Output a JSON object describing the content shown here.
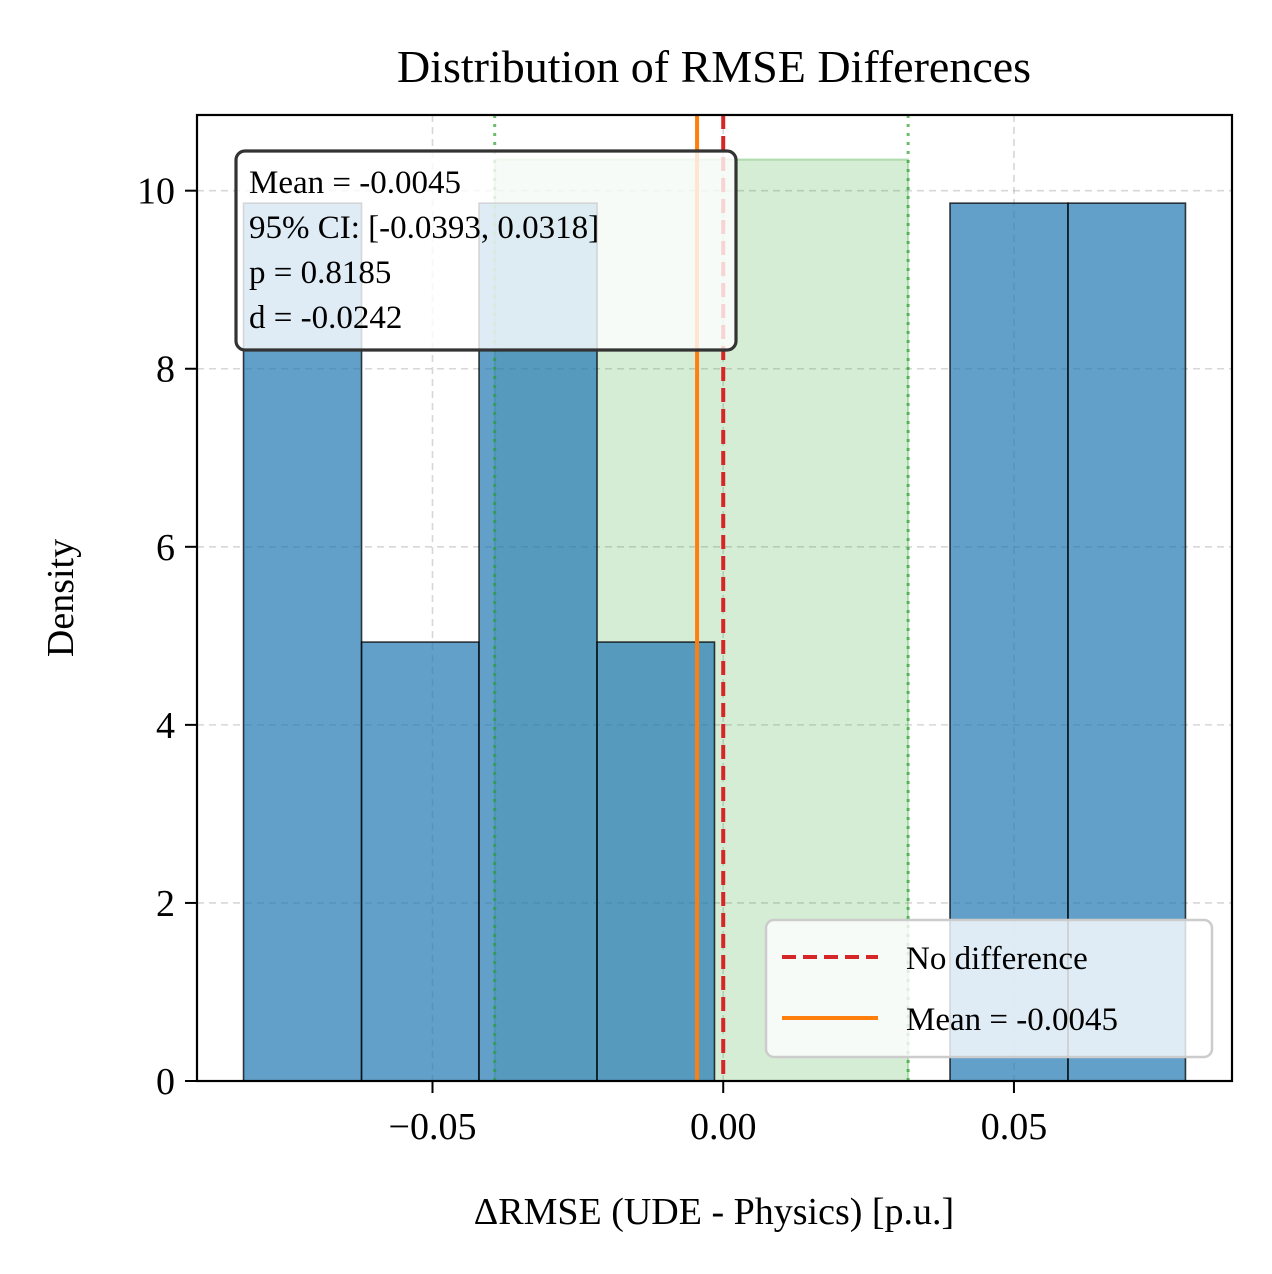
{
  "chart_data": {
    "type": "bar",
    "title": "Distribution of RMSE Differences",
    "xlabel": "ΔRMSE (UDE - Physics) [p.u.]",
    "ylabel": "Density",
    "xlim": [
      -0.0905,
      0.0875
    ],
    "ylim": [
      0,
      10.85
    ],
    "x_ticks": [
      -0.05,
      0.0,
      0.05
    ],
    "x_tick_labels": [
      "−0.05",
      "0.00",
      "0.05"
    ],
    "y_ticks": [
      0,
      2,
      4,
      6,
      8,
      10
    ],
    "y_tick_labels": [
      "0",
      "2",
      "4",
      "6",
      "8",
      "10"
    ],
    "grid": true,
    "histogram": {
      "bin_edges": [
        -0.0825,
        -0.0622,
        -0.042,
        -0.0217,
        -0.0015,
        0.0188,
        0.039,
        0.0593,
        0.0795
      ],
      "density": [
        9.86,
        4.93,
        9.86,
        4.93,
        0,
        0,
        9.86,
        9.86
      ],
      "color": "#1f77b4"
    },
    "ci_band": {
      "lower": -0.0393,
      "upper": 0.0318,
      "height": 10.35,
      "color": "#2ca02c"
    },
    "mean_value": -0.0045,
    "zero_value": 0.0,
    "stats_box": {
      "mean_text": "Mean = -0.0045",
      "ci_text": "95% CI: [-0.0393, 0.0318]",
      "p_text": "p = 0.8185",
      "d_text": "d = -0.0242"
    },
    "legend": {
      "placement": "lower-right",
      "entries": [
        {
          "label": "No difference",
          "color": "#d62728",
          "style": "dashed"
        },
        {
          "label": "Mean = -0.0045",
          "color": "#ff7f0e",
          "style": "solid"
        }
      ]
    }
  }
}
